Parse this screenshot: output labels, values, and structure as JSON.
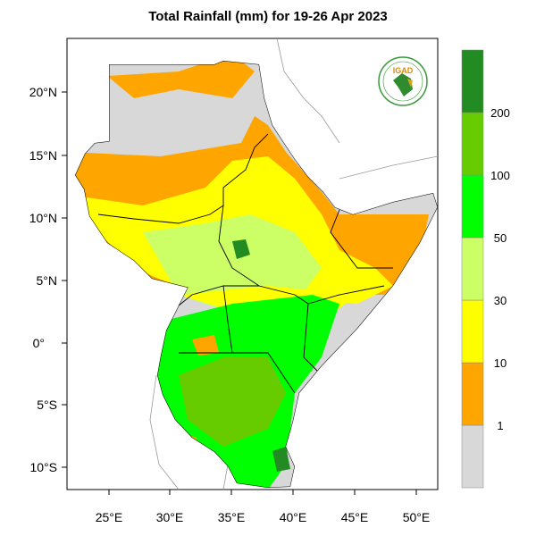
{
  "title": "Total Rainfall (mm) for 19-26 Apr 2023",
  "logo_text": "IGAD",
  "lon_ticks": [
    "25°E",
    "30°E",
    "35°E",
    "40°E",
    "45°E",
    "50°E"
  ],
  "lat_ticks": [
    "20°N",
    "15°N",
    "10°N",
    "5°N",
    "0°",
    "5°S",
    "10°S"
  ],
  "legend": {
    "levels": [
      "1",
      "10",
      "30",
      "50",
      "100",
      "200"
    ],
    "colors": [
      "#d8d8d8",
      "#ffa500",
      "#ffff00",
      "#ccff66",
      "#00ff00",
      "#66cc00",
      "#228b22"
    ]
  }
}
